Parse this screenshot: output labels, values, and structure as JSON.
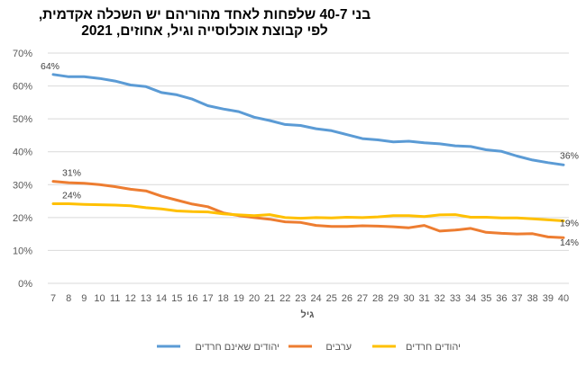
{
  "title": {
    "line1": "בני 40-7 שלפחות לאחד מהוריהם יש השכלה אקדמית,",
    "line2": "לפי קבוצת אוכלוסייה וגיל, אחוזים, 2021"
  },
  "chart_data": {
    "type": "line",
    "xlabel": "גיל",
    "ylabel": "",
    "x": [
      7,
      8,
      9,
      10,
      11,
      12,
      13,
      14,
      15,
      16,
      17,
      18,
      19,
      20,
      21,
      22,
      23,
      24,
      25,
      26,
      27,
      28,
      29,
      30,
      31,
      32,
      33,
      34,
      35,
      36,
      37,
      38,
      39,
      40
    ],
    "ylim": [
      0,
      70
    ],
    "yticks": [
      "0%",
      "10%",
      "20%",
      "30%",
      "40%",
      "50%",
      "60%",
      "70%"
    ],
    "grid": true,
    "legend": "bottom",
    "series": [
      {
        "name": "יהודים שאינם חרדים",
        "color": "#5B9BD5",
        "values": [
          63.5,
          62.8,
          62.8,
          62.3,
          61.5,
          60.3,
          59.8,
          58.0,
          57.3,
          56.0,
          54.0,
          53.0,
          52.2,
          50.5,
          49.5,
          48.3,
          48.0,
          47.0,
          46.4,
          45.2,
          44.0,
          43.6,
          43.0,
          43.2,
          42.7,
          42.4,
          41.8,
          41.6,
          40.6,
          40.1,
          38.7,
          37.5,
          36.7,
          36.0
        ],
        "first_label": "64%",
        "last_label": "36%"
      },
      {
        "name": "ערבים",
        "color": "#ED7D31",
        "values": [
          31.0,
          30.6,
          30.4,
          30.0,
          29.4,
          28.6,
          28.1,
          26.5,
          25.3,
          24.1,
          23.3,
          21.4,
          20.6,
          20.0,
          19.5,
          18.7,
          18.5,
          17.6,
          17.3,
          17.3,
          17.5,
          17.4,
          17.2,
          16.9,
          17.6,
          15.9,
          16.2,
          16.7,
          15.5,
          15.2,
          15.0,
          15.1,
          14.1,
          13.9
        ],
        "first_label": "31%",
        "last_label": "14%"
      },
      {
        "name": "יהודים חרדים",
        "color": "#FFC000",
        "values": [
          24.2,
          24.2,
          24.0,
          23.9,
          23.8,
          23.6,
          23.0,
          22.6,
          22.0,
          21.8,
          21.7,
          21.1,
          20.8,
          20.6,
          20.9,
          20.0,
          19.8,
          20.0,
          19.9,
          20.1,
          20.0,
          20.2,
          20.6,
          20.6,
          20.3,
          20.8,
          20.9,
          20.1,
          20.1,
          19.9,
          19.9,
          19.6,
          19.3,
          19.0
        ],
        "first_label": "24%",
        "last_label": "19%"
      }
    ]
  }
}
